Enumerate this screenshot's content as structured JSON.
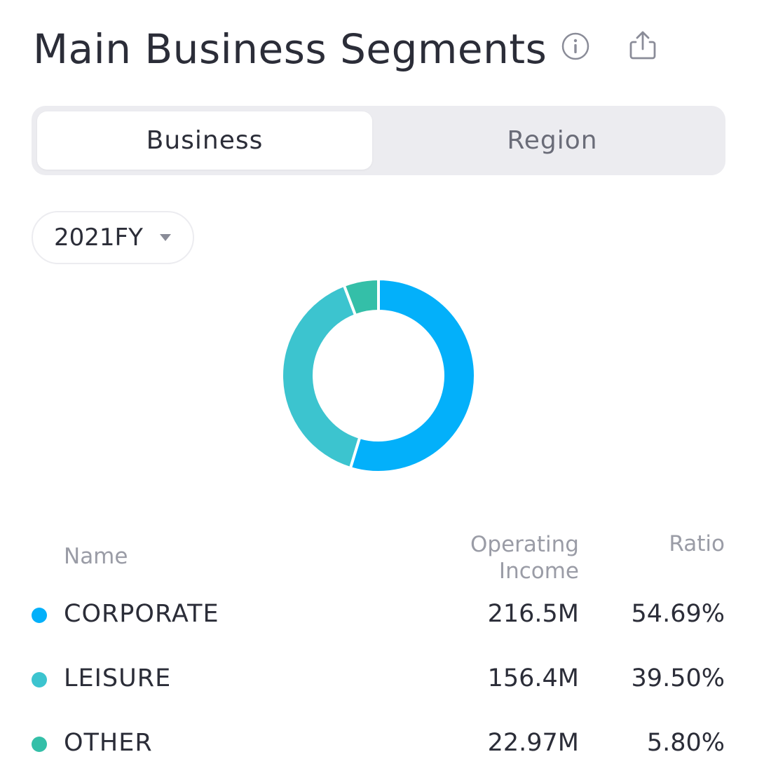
{
  "header": {
    "title": "Main Business Segments",
    "info_icon": "info-circle-icon",
    "share_icon": "share-icon"
  },
  "tabs": [
    {
      "label": "Business",
      "active": true
    },
    {
      "label": "Region",
      "active": false
    }
  ],
  "period": {
    "selected": "2021FY",
    "arrow_icon": "caret-down-icon"
  },
  "colors": {
    "corporate": "#03b0fa",
    "leisure": "#3cc4cf",
    "other": "#34bfa8"
  },
  "chart_data": {
    "type": "pie",
    "donut": true,
    "categories": [
      "CORPORATE",
      "LEISURE",
      "OTHER"
    ],
    "values": [
      54.69,
      39.5,
      5.8
    ],
    "colors": [
      "#03b0fa",
      "#3cc4cf",
      "#34bfa8"
    ]
  },
  "table": {
    "headers": {
      "name": "Name",
      "income_line1": "Operating",
      "income_line2": "Income",
      "ratio": "Ratio"
    },
    "rows": [
      {
        "name": "CORPORATE",
        "income": "216.5M",
        "ratio": "54.69%",
        "color": "#03b0fa"
      },
      {
        "name": "LEISURE",
        "income": "156.4M",
        "ratio": "39.50%",
        "color": "#3cc4cf"
      },
      {
        "name": "OTHER",
        "income": "22.97M",
        "ratio": "5.80%",
        "color": "#34bfa8"
      }
    ]
  }
}
